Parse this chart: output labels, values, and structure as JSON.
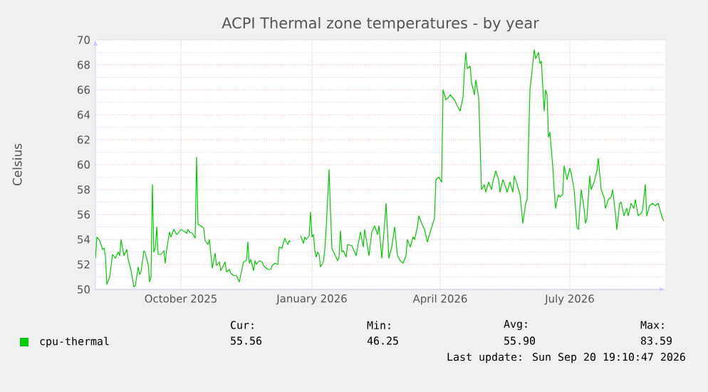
{
  "chart_data": {
    "type": "line",
    "title": "ACPI Thermal zone temperatures - by year",
    "ylabel": "Celsius",
    "xlim": [
      "2025-08-02",
      "2026-09-06"
    ],
    "xticks": [
      {
        "value": "2025-10-01",
        "label": "October 2025"
      },
      {
        "value": "2026-01-01",
        "label": "January 2026"
      },
      {
        "value": "2026-04-01",
        "label": "April 2026"
      },
      {
        "value": "2026-07-01",
        "label": "July 2026"
      }
    ],
    "ylim": [
      50,
      70
    ],
    "yticks": [
      50,
      52,
      54,
      56,
      58,
      60,
      62,
      64,
      66,
      68,
      70
    ],
    "grid": true,
    "legend": "bottom",
    "annotations": [
      "Cur:",
      "Min:",
      "Avg:",
      "Max:",
      "55.56",
      "46.25",
      "55.90",
      "83.59",
      "Last update: Sun Sep 20 19:10:47 2026"
    ],
    "series": [
      {
        "name": "cpu-thermal",
        "color": "#00cc00",
        "x": [
          "2025-08-02",
          "2025-08-03",
          "2025-08-05",
          "2025-08-07",
          "2025-08-08",
          "2025-08-09",
          "2025-08-10",
          "2025-08-12",
          "2025-08-14",
          "2025-08-16",
          "2025-08-18",
          "2025-08-19",
          "2025-08-20",
          "2025-08-22",
          "2025-08-24",
          "2025-08-25",
          "2025-08-27",
          "2025-08-29",
          "2025-08-30",
          "2025-09-01",
          "2025-09-02",
          "2025-09-03",
          "2025-09-05",
          "2025-09-06",
          "2025-09-08",
          "2025-09-09",
          "2025-09-10",
          "2025-09-11",
          "2025-09-12",
          "2025-09-13",
          "2025-09-14",
          "2025-09-15",
          "2025-09-17",
          "2025-09-19",
          "2025-09-20",
          "2025-09-21",
          "2025-09-23",
          "2025-09-24",
          "2025-09-26",
          "2025-09-28",
          "2025-09-29",
          "2025-10-01",
          "2025-10-04",
          "2025-10-05",
          "2025-10-06",
          "2025-10-07",
          "2025-10-09",
          "2025-10-11",
          "2025-10-12",
          "2025-10-13",
          "2025-10-15",
          "2025-10-17",
          "2025-10-18",
          "2025-10-20",
          "2025-10-21",
          "2025-10-22",
          "2025-10-23",
          "2025-10-25",
          "2025-10-26",
          "2025-10-28",
          "2025-10-29",
          "2025-11-01",
          "2025-11-02",
          "2025-11-04",
          "2025-11-05",
          "2025-11-07",
          "2025-11-09",
          "2025-11-11",
          "2025-11-13",
          "2025-11-14",
          "2025-11-16",
          "2025-11-17",
          "2025-11-18",
          "2025-11-19",
          "2025-11-21",
          "2025-11-22",
          "2025-11-23",
          "2025-11-25",
          "2025-11-27",
          "2025-11-28",
          "2025-11-29",
          "2025-12-01",
          "2025-12-03",
          "2025-12-04",
          "2025-12-06",
          "2025-12-08",
          "2025-12-09",
          "2025-12-11",
          "2025-12-12",
          "2025-12-13",
          "2025-12-14",
          "2025-12-15",
          "2025-12-16",
          "2025-12-17",
          "2025-12-22",
          "2025-12-24",
          "2025-12-26",
          "2025-12-27",
          "2025-12-28",
          "2025-12-30",
          "2025-12-31",
          "2026-01-01",
          "2026-01-02",
          "2026-01-03",
          "2026-01-04",
          "2026-01-05",
          "2026-01-06",
          "2026-01-07",
          "2026-01-09",
          "2026-01-10",
          "2026-01-11",
          "2026-01-13",
          "2026-01-14",
          "2026-01-15",
          "2026-01-17",
          "2026-01-19",
          "2026-01-20",
          "2026-01-21",
          "2026-01-22",
          "2026-01-23",
          "2026-01-25",
          "2026-01-26",
          "2026-01-29",
          "2026-02-01",
          "2026-02-04",
          "2026-02-06",
          "2026-02-07",
          "2026-02-10",
          "2026-02-12",
          "2026-02-14",
          "2026-02-16",
          "2026-02-17",
          "2026-02-19",
          "2026-02-21",
          "2026-02-22",
          "2026-02-24",
          "2026-02-26",
          "2026-02-28",
          "2026-03-02",
          "2026-03-04",
          "2026-03-06",
          "2026-03-08",
          "2026-03-09",
          "2026-03-11",
          "2026-03-13",
          "2026-03-14",
          "2026-03-16",
          "2026-03-17",
          "2026-03-19",
          "2026-03-21",
          "2026-03-23",
          "2026-03-25",
          "2026-03-28",
          "2026-03-29",
          "2026-03-31",
          "2026-04-02",
          "2026-04-03",
          "2026-04-05",
          "2026-04-07",
          "2026-04-08",
          "2026-04-11",
          "2026-04-13",
          "2026-04-15",
          "2026-04-17",
          "2026-04-18",
          "2026-04-19",
          "2026-04-20",
          "2026-04-22",
          "2026-04-23",
          "2026-04-25",
          "2026-04-26",
          "2026-04-28",
          "2026-04-29",
          "2026-04-30",
          "2026-05-02",
          "2026-05-03",
          "2026-05-05",
          "2026-05-07",
          "2026-05-08",
          "2026-05-10",
          "2026-05-12",
          "2026-05-13",
          "2026-05-15",
          "2026-05-17",
          "2026-05-18",
          "2026-05-20",
          "2026-05-22",
          "2026-05-23",
          "2026-05-25",
          "2026-05-27",
          "2026-05-28",
          "2026-05-29",
          "2026-05-31",
          "2026-06-01",
          "2026-06-03",
          "2026-06-04",
          "2026-06-06",
          "2026-06-07",
          "2026-06-09",
          "2026-06-10",
          "2026-06-11",
          "2026-06-13",
          "2026-06-14",
          "2026-06-15",
          "2026-06-16",
          "2026-06-17",
          "2026-06-19",
          "2026-06-20",
          "2026-06-21",
          "2026-06-23",
          "2026-06-24",
          "2026-06-26",
          "2026-06-27",
          "2026-06-29",
          "2026-07-01",
          "2026-07-02",
          "2026-07-04",
          "2026-07-06",
          "2026-07-07",
          "2026-07-09",
          "2026-07-11",
          "2026-07-12",
          "2026-07-13",
          "2026-07-15",
          "2026-07-16",
          "2026-07-18",
          "2026-07-20",
          "2026-07-21",
          "2026-07-23",
          "2026-07-25",
          "2026-07-26",
          "2026-07-28",
          "2026-07-30",
          "2026-07-31",
          "2026-08-02",
          "2026-08-03",
          "2026-08-05",
          "2026-08-06",
          "2026-08-08",
          "2026-08-10",
          "2026-08-11",
          "2026-08-13",
          "2026-08-15",
          "2026-08-16",
          "2026-08-18",
          "2026-08-20",
          "2026-08-21",
          "2026-08-23",
          "2026-08-24",
          "2026-08-26",
          "2026-08-28",
          "2026-08-30",
          "2026-09-01",
          "2026-09-02",
          "2026-09-04",
          "2026-09-05"
        ],
        "values": [
          52.5,
          54.2,
          53.9,
          53.2,
          53.3,
          52.7,
          50.4,
          51.0,
          52.8,
          52.5,
          53.0,
          52.7,
          54.0,
          52.7,
          53.2,
          52.4,
          51.5,
          50.2,
          50.3,
          51.8,
          51.2,
          51.4,
          53.1,
          52.9,
          52.0,
          50.6,
          51.0,
          58.4,
          53.0,
          53.3,
          55.0,
          52.8,
          52.8,
          53.1,
          52.1,
          53.2,
          54.6,
          54.2,
          54.8,
          54.4,
          54.5,
          54.8,
          54.6,
          54.5,
          54.8,
          54.6,
          54.5,
          54.1,
          60.6,
          55.2,
          55.1,
          54.9,
          53.9,
          53.6,
          54.0,
          52.8,
          51.7,
          52.9,
          51.9,
          52.2,
          51.5,
          52.2,
          51.4,
          51.6,
          51.3,
          51.1,
          51.1,
          50.6,
          51.7,
          52.2,
          52.3,
          53.8,
          52.1,
          52.4,
          51.5,
          52.3,
          52.0,
          52.3,
          52.2,
          51.9,
          51.8,
          51.6,
          51.6,
          51.9,
          52.1,
          52.0,
          53.4,
          53.3,
          53.8,
          54.1,
          53.8,
          53.6,
          53.9,
          53.8,
          null,
          54.3,
          53.7,
          54.2,
          54.0,
          54.3,
          56.2,
          54.2,
          54.4,
          53.1,
          52.6,
          53.0,
          52.8,
          51.8,
          52.2,
          53.2,
          55.0,
          59.6,
          56.2,
          53.3,
          52.8,
          52.3,
          52.6,
          54.7,
          53.0,
          53.1,
          52.6,
          53.6,
          53.5,
          52.7,
          54.6,
          53.4,
          54.8,
          52.7,
          54.6,
          55.1,
          54.4,
          55.1,
          52.5,
          55.3,
          56.9,
          52.5,
          53.4,
          55.0,
          52.7,
          52.3,
          52.1,
          52.7,
          54.0,
          53.4,
          54.2,
          54.0,
          55.0,
          55.9,
          55.3,
          54.8,
          53.8,
          54.6,
          55.7,
          58.8,
          59.0,
          58.6,
          66.0,
          65.2,
          65.4,
          65.6,
          65.2,
          64.7,
          64.3,
          65.4,
          67.5,
          69.0,
          67.7,
          67.9,
          66.6,
          65.6,
          66.8,
          65.4,
          61.8,
          58.0,
          58.4,
          57.8,
          58.6,
          58.0,
          58.6,
          59.5,
          58.8,
          57.8,
          58.8,
          58.2,
          57.8,
          58.6,
          57.8,
          59.1,
          58.4,
          57.6,
          56.5,
          55.3,
          56.9,
          57.2,
          66.0,
          67.0,
          69.2,
          68.5,
          69.0,
          68.1,
          68.3,
          64.3,
          66.0,
          65.6,
          62.2,
          62.6,
          59.9,
          58.0,
          56.5,
          57.6,
          57.4,
          57.6,
          59.9,
          58.8,
          59.7,
          59.3,
          58.0,
          55.0,
          54.8,
          58.0,
          56.5,
          55.3,
          55.7,
          59.1,
          58.0,
          58.6,
          59.5,
          60.5,
          58.0,
          57.4,
          56.5,
          57.2,
          57.4,
          58.0,
          56.1,
          54.8,
          56.9,
          57.0,
          55.9,
          56.5,
          55.9,
          56.9,
          56.5,
          57.2,
          55.9,
          56.1,
          56.3,
          58.4,
          55.9,
          56.7,
          56.9,
          56.7,
          56.9,
          56.5,
          55.7,
          55.5
        ]
      }
    ]
  }
}
